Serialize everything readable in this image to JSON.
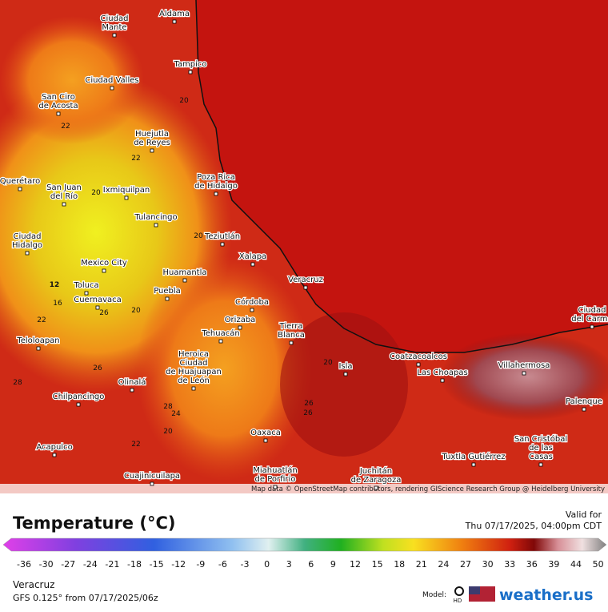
{
  "header": {
    "title": "Temperature (°C)",
    "valid_label": "Valid for",
    "valid_time": "Thu 07/17/2025, 04:00pm CDT"
  },
  "map": {
    "cities": [
      {
        "name": [
          "Aldama"
        ]
      },
      {
        "name": [
          "Ciudad",
          "Mante"
        ]
      },
      {
        "name": [
          "Tampico"
        ]
      },
      {
        "name": [
          "Ciudad Valles"
        ]
      },
      {
        "name": [
          "San Ciro",
          "de Acosta"
        ]
      },
      {
        "name": [
          "Huejutla",
          "de Reyes"
        ]
      },
      {
        "name": [
          "Poza Rica",
          "de Hidalgo"
        ]
      },
      {
        "name": [
          "San Juan",
          "del Río"
        ]
      },
      {
        "name": [
          "Ixmiquilpan"
        ]
      },
      {
        "name": [
          "Querétaro"
        ]
      },
      {
        "name": [
          "Tulancingo"
        ]
      },
      {
        "name": [
          "Teziutlán"
        ]
      },
      {
        "name": [
          "Ciudad",
          "Hidalgo"
        ]
      },
      {
        "name": [
          "Mexico City"
        ]
      },
      {
        "name": [
          "Xalapa"
        ]
      },
      {
        "name": [
          "Huamantla"
        ]
      },
      {
        "name": [
          "Veracruz"
        ]
      },
      {
        "name": [
          "Toluca"
        ]
      },
      {
        "name": [
          "Puebla"
        ]
      },
      {
        "name": [
          "Cuernavaca"
        ]
      },
      {
        "name": [
          "Córdoba"
        ]
      },
      {
        "name": [
          "Orizaba"
        ]
      },
      {
        "name": [
          "Tierra",
          "Blanca"
        ]
      },
      {
        "name": [
          "Tehuacán"
        ]
      },
      {
        "name": [
          "Teloloapan"
        ]
      },
      {
        "name": [
          "Coatzacoalcos"
        ]
      },
      {
        "name": [
          "Heroica",
          "Ciudad",
          "de Huajuapan",
          "de León"
        ]
      },
      {
        "name": [
          "Isla"
        ]
      },
      {
        "name": [
          "Las Choapas"
        ]
      },
      {
        "name": [
          "Villahermosa"
        ]
      },
      {
        "name": [
          "Olinalá"
        ]
      },
      {
        "name": [
          "Chilpancingo"
        ]
      },
      {
        "name": [
          "Palenque"
        ]
      },
      {
        "name": [
          "Oaxaca"
        ]
      },
      {
        "name": [
          "San Cristóbal",
          "de las",
          "Casas"
        ]
      },
      {
        "name": [
          "Acapulco"
        ]
      },
      {
        "name": [
          "Tuxtla Gutiérrez"
        ]
      },
      {
        "name": [
          "Juchitán",
          "de Zaragoza"
        ]
      },
      {
        "name": [
          "Miahuatlán",
          "de Porfirio"
        ]
      },
      {
        "name": [
          "Cuajinicuilapa"
        ]
      },
      {
        "name": [
          "Ciudad",
          "del Carme"
        ]
      }
    ],
    "contour_labels": [
      "20",
      "22",
      "22",
      "20",
      "12",
      "16",
      "22",
      "20",
      "26",
      "26",
      "28",
      "28",
      "24",
      "20",
      "22",
      "26",
      "20",
      "20",
      "26"
    ],
    "attribution": "Map data © OpenStreetMap contributors, rendering GIScience Research Group @ Heidelberg University"
  },
  "legend": {
    "ticks": [
      -36,
      -30,
      -27,
      -24,
      -21,
      -18,
      -15,
      -12,
      -9,
      -6,
      -3,
      0,
      3,
      6,
      9,
      12,
      15,
      18,
      21,
      24,
      27,
      30,
      33,
      36,
      39,
      44,
      50
    ]
  },
  "footer": {
    "location": "Veracruz",
    "model_run": "GFS 0.125° from  07/17/2025/06z",
    "model_label": "Model:",
    "hd": "HD",
    "brand": "weather.us"
  }
}
